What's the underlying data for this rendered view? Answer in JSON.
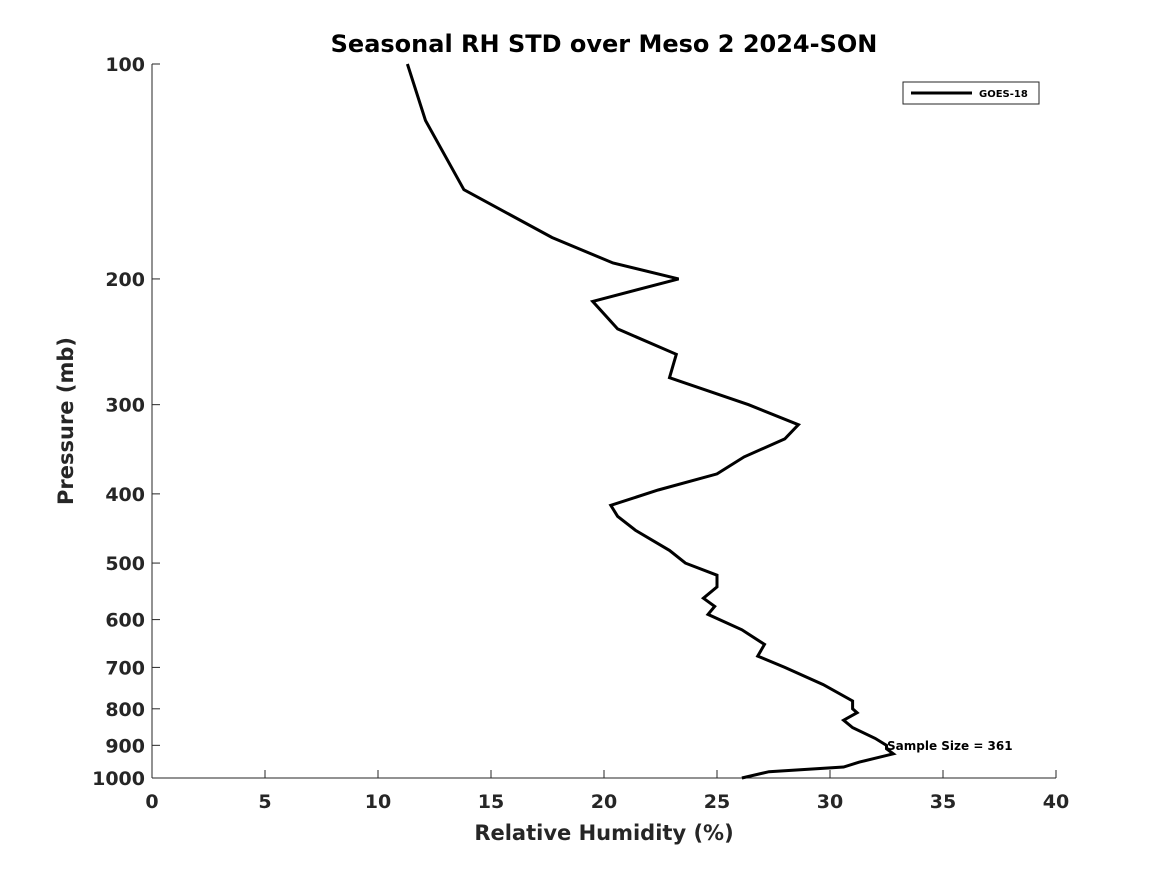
{
  "chart_data": {
    "type": "line",
    "title": "Seasonal RH STD over Meso 2  2024-SON",
    "xlabel": "Relative Humidity (%)",
    "ylabel": "Pressure (mb)",
    "xlim": [
      0,
      40
    ],
    "ylim": [
      100,
      1000
    ],
    "yscale": "log",
    "reverse_y": true,
    "grid": false,
    "x_ticks": [
      0,
      5,
      10,
      15,
      20,
      25,
      30,
      35,
      40
    ],
    "x_tick_labels": [
      "0",
      "5",
      "10",
      "15",
      "20",
      "25",
      "30",
      "35",
      "40"
    ],
    "y_ticks": [
      100,
      200,
      300,
      400,
      500,
      600,
      700,
      800,
      900,
      1000
    ],
    "y_tick_labels": [
      "100",
      "200",
      "300",
      "400",
      "500",
      "600",
      "700",
      "800",
      "900",
      "1000"
    ],
    "legend": {
      "position": "top-right",
      "entries": [
        "GOES-18"
      ]
    },
    "annotation": "Sample Size = 361",
    "line_color": "#000000",
    "series": [
      {
        "name": "GOES-18",
        "x": [
          11.3,
          12.1,
          13.8,
          17.7,
          20.4,
          23.3,
          19.5,
          20.6,
          23.2,
          22.9,
          26.4,
          28.6,
          28.0,
          26.2,
          25.0,
          22.4,
          20.3,
          20.6,
          21.4,
          22.9,
          23.6,
          25.0,
          25.0,
          24.4,
          24.9,
          24.6,
          26.1,
          27.1,
          26.8,
          28.0,
          29.7,
          31.0,
          31.0,
          31.2,
          30.6,
          31.0,
          32.0,
          32.5,
          32.5,
          32.8,
          31.3,
          30.6,
          27.3,
          26.1
        ],
        "y": [
          100,
          120,
          150,
          175,
          190,
          200,
          215,
          235,
          255,
          275,
          300,
          320,
          335,
          355,
          375,
          395,
          415,
          430,
          450,
          480,
          500,
          520,
          540,
          560,
          575,
          590,
          620,
          650,
          675,
          700,
          740,
          780,
          800,
          810,
          830,
          850,
          880,
          900,
          910,
          925,
          950,
          965,
          980,
          1000
        ]
      }
    ]
  }
}
